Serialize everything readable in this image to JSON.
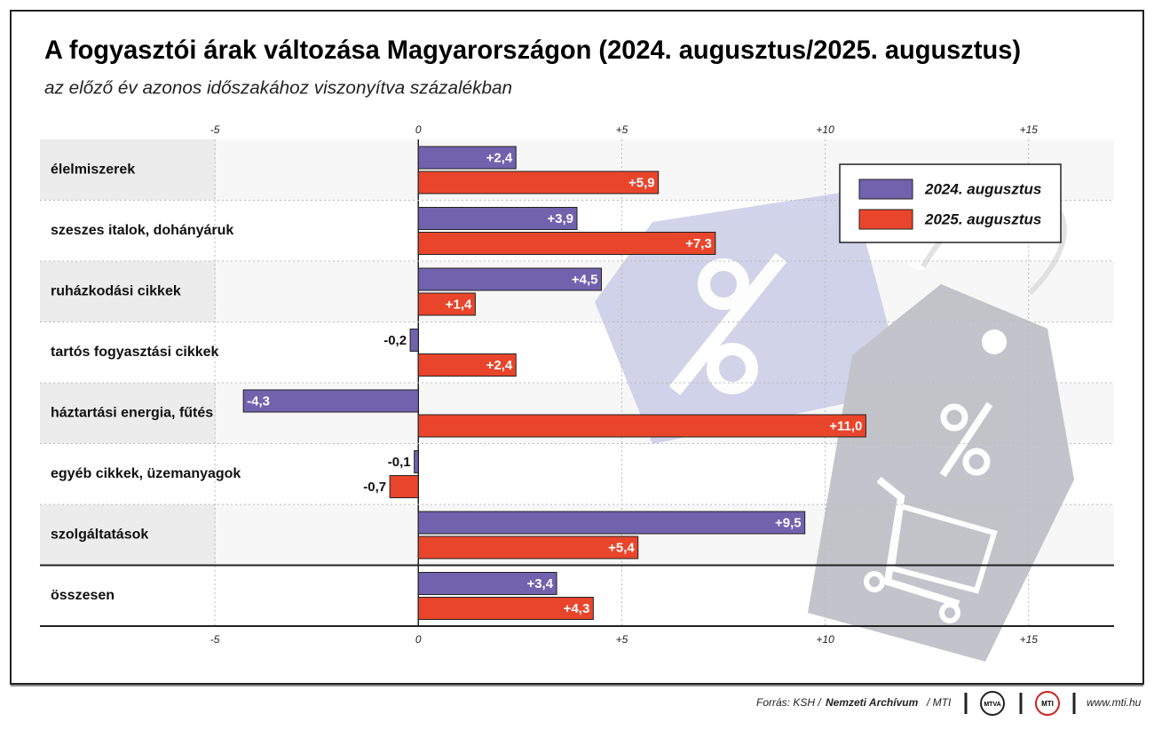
{
  "chart_data": {
    "type": "bar",
    "orientation": "horizontal",
    "title": "A fogyasztói árak változása Magyarországon (2024. augusztus/2025. augusztus)",
    "subtitle": "az előző év azonos időszakához viszonyítva százalékban",
    "categories": [
      "élelmiszerek",
      "szeszes italok, dohányáruk",
      "ruházkodási cikkek",
      "tartós fogyasztási cikkek",
      "háztartási energia, fűtés",
      "egyéb cikkek, üzemanyagok",
      "szolgáltatások",
      "összesen"
    ],
    "series": [
      {
        "name": "2024. augusztus",
        "color": "#7062ad",
        "values": [
          2.4,
          3.9,
          4.5,
          -0.2,
          -4.3,
          -0.1,
          9.5,
          3.4
        ],
        "value_labels": [
          "+2,4",
          "+3,9",
          "+4,5",
          "-0,2",
          "-4,3",
          "-0,1",
          "+9,5",
          "+3,4"
        ]
      },
      {
        "name": "2025. augusztus",
        "color": "#e9452b",
        "values": [
          5.9,
          7.3,
          1.4,
          2.4,
          11.0,
          -0.7,
          5.4,
          4.3
        ],
        "value_labels": [
          "+5,9",
          "+7,3",
          "+1,4",
          "+2,4",
          "+11,0",
          "-0,7",
          "+5,4",
          "+4,3"
        ]
      }
    ],
    "xlim": [
      -9.3,
      17.1
    ],
    "xticks": [
      -5,
      0,
      {
        "value": 5,
        "label": "+5"
      },
      {
        "value": 10,
        "label": "+10"
      },
      {
        "value": 15,
        "label": "+15"
      }
    ],
    "grid": true,
    "legend": "upper right"
  },
  "footer": {
    "source_prefix": "Forrás: KSH /",
    "source_bold": "Nemzeti Archívum",
    "source_suffix": "/ MTI",
    "logo1": "MTVA",
    "logo2": "MTI",
    "url": "www.mti.hu"
  }
}
